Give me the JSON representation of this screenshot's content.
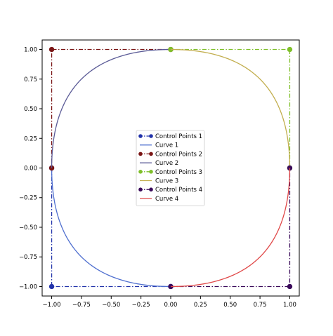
{
  "chart_data": {
    "type": "line",
    "title": "",
    "xlabel": "",
    "ylabel": "",
    "xlim": [
      -1.08,
      1.08
    ],
    "ylim": [
      -1.08,
      1.08
    ],
    "aspect": "equal",
    "grid": false,
    "legend_position": "center",
    "x_ticks": [
      -1.0,
      -0.75,
      -0.5,
      -0.25,
      0.0,
      0.25,
      0.5,
      0.75,
      1.0
    ],
    "x_tick_labels": [
      "−1.00",
      "−0.75",
      "−0.50",
      "−0.25",
      "0.00",
      "0.25",
      "0.50",
      "0.75",
      "1.00"
    ],
    "y_ticks": [
      1.0,
      0.75,
      0.5,
      0.25,
      0.0,
      -0.25,
      -0.5,
      -0.75,
      -1.0
    ],
    "y_tick_labels": [
      "1.00",
      "0.75",
      "0.50",
      "0.25",
      "0.00",
      "−0.25",
      "−0.50",
      "−0.75",
      "−1.00"
    ],
    "series": [
      {
        "name": "Control Points 1",
        "kind": "control",
        "color": "#2233aa",
        "points": [
          [
            -1,
            0
          ],
          [
            -1,
            -1
          ],
          [
            0,
            -1
          ]
        ]
      },
      {
        "name": "Curve 1",
        "kind": "curve",
        "color": "#4f6fcf",
        "points": [
          [
            -1,
            0
          ],
          [
            -1,
            -1
          ],
          [
            0,
            -1
          ]
        ]
      },
      {
        "name": "Control Points 2",
        "kind": "control",
        "color": "#7a1515",
        "points": [
          [
            0,
            1
          ],
          [
            -1,
            1
          ],
          [
            -1,
            0
          ]
        ]
      },
      {
        "name": "Curve 2",
        "kind": "curve",
        "color": "#5a5a96",
        "points": [
          [
            0,
            1
          ],
          [
            -1,
            1
          ],
          [
            -1,
            0
          ]
        ]
      },
      {
        "name": "Control Points 3",
        "kind": "control",
        "color": "#7fbf2a",
        "points": [
          [
            1,
            0
          ],
          [
            1,
            1
          ],
          [
            0,
            1
          ]
        ]
      },
      {
        "name": "Curve 3",
        "kind": "curve",
        "color": "#c2ae4e",
        "points": [
          [
            1,
            0
          ],
          [
            1,
            1
          ],
          [
            0,
            1
          ]
        ]
      },
      {
        "name": "Control Points 4",
        "kind": "control",
        "color": "#3a0a5a",
        "points": [
          [
            0,
            -1
          ],
          [
            1,
            -1
          ],
          [
            1,
            0
          ]
        ]
      },
      {
        "name": "Curve 4",
        "kind": "curve",
        "color": "#e04848",
        "points": [
          [
            0,
            -1
          ],
          [
            1,
            -1
          ],
          [
            1,
            0
          ]
        ]
      }
    ]
  }
}
